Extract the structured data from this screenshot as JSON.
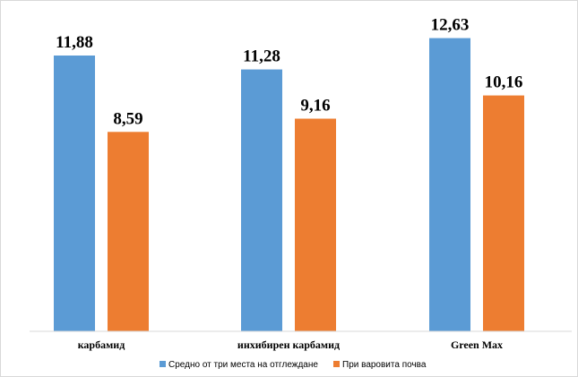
{
  "chart_data": {
    "type": "bar",
    "categories": [
      "карбамид",
      "инхибирен карбамид",
      "Green Max"
    ],
    "series": [
      {
        "name": "Средно от три места на отглеждане",
        "color": "#5B9BD5",
        "values": [
          11.88,
          11.28,
          12.63
        ],
        "labels": [
          "11,88",
          "11,28",
          "12,63"
        ]
      },
      {
        "name": "При варовита почва",
        "color": "#ED7D31",
        "values": [
          8.59,
          9.16,
          10.16
        ],
        "labels": [
          "8,59",
          "9,16",
          "10,16"
        ]
      }
    ],
    "ylim": [
      0,
      13.5
    ],
    "grid": false,
    "legend_position": "bottom"
  }
}
